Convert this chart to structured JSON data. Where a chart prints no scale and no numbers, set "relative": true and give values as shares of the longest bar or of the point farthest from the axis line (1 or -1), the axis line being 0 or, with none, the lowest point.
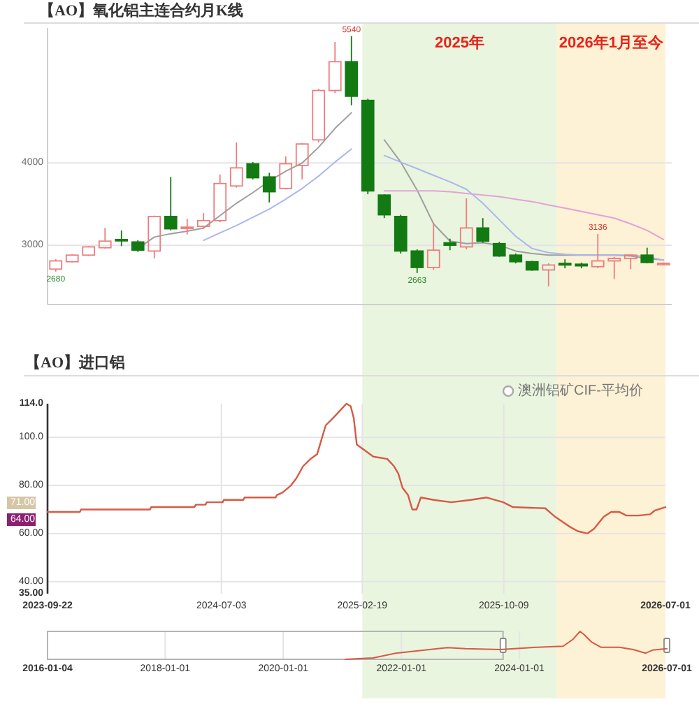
{
  "chart_data": [
    {
      "type": "candlestick",
      "title": "【AO】氧化铝主连合约月K线",
      "categories": [
        null,
        null,
        null,
        null,
        null,
        null,
        null,
        null,
        null,
        null,
        null,
        null,
        null,
        null,
        null,
        null,
        null,
        null,
        null,
        null,
        null,
        null,
        null,
        null,
        null,
        null,
        null,
        null,
        null,
        null,
        null,
        null,
        null,
        null,
        null,
        null,
        null,
        null
      ],
      "ohlc": [
        [
          2710,
          2830,
          2680,
          2810
        ],
        [
          2800,
          2890,
          2790,
          2880
        ],
        [
          2880,
          2990,
          2870,
          2980
        ],
        [
          2970,
          3210,
          2960,
          3050
        ],
        [
          3070,
          3180,
          2990,
          3060
        ],
        [
          3040,
          3060,
          2920,
          2940
        ],
        [
          2930,
          3360,
          2840,
          3350
        ],
        [
          3350,
          3830,
          3180,
          3200
        ],
        [
          3210,
          3320,
          3130,
          3220
        ],
        [
          3230,
          3390,
          3200,
          3300
        ],
        [
          3300,
          3860,
          3280,
          3750
        ],
        [
          3720,
          4250,
          3700,
          3940
        ],
        [
          3990,
          4010,
          3800,
          3820
        ],
        [
          3830,
          3880,
          3520,
          3650
        ],
        [
          3690,
          4080,
          3680,
          3990
        ],
        [
          3970,
          4240,
          3800,
          4230
        ],
        [
          4280,
          4900,
          4250,
          4880
        ],
        [
          4880,
          5470,
          4850,
          5230
        ],
        [
          5230,
          5540,
          4700,
          4810
        ],
        [
          4760,
          4780,
          3620,
          3660
        ],
        [
          3610,
          3620,
          3330,
          3370
        ],
        [
          3350,
          3370,
          2900,
          2930
        ],
        [
          2930,
          2950,
          2663,
          2730
        ],
        [
          2730,
          3270,
          2700,
          2940
        ],
        [
          3030,
          3080,
          2940,
          3000
        ],
        [
          2980,
          3570,
          2950,
          3210
        ],
        [
          3210,
          3330,
          3030,
          3050
        ],
        [
          3020,
          3040,
          2860,
          2870
        ],
        [
          2880,
          2900,
          2780,
          2800
        ],
        [
          2800,
          2810,
          2690,
          2700
        ],
        [
          2700,
          2780,
          2500,
          2760
        ],
        [
          2780,
          2830,
          2720,
          2760
        ],
        [
          2770,
          2790,
          2720,
          2750
        ],
        [
          2740,
          3136,
          2720,
          2810
        ],
        [
          2810,
          2860,
          2590,
          2840
        ],
        [
          2840,
          2890,
          2710,
          2880
        ],
        [
          2880,
          2970,
          2780,
          2790
        ],
        [
          2770,
          2790,
          2760,
          2780
        ]
      ],
      "series": [
        {
          "type": "line",
          "color": "#9e9e9e",
          "values": [
            null,
            null,
            null,
            null,
            null,
            2960,
            3100,
            3140,
            3170,
            3210,
            3360,
            3510,
            3640,
            3780,
            3900,
            4000,
            4190,
            4420,
            4610,
            null,
            4280,
            4010,
            3670,
            3260,
            3050,
            3020,
            3030,
            3000,
            2930,
            2900,
            2880,
            2880,
            2880,
            2880,
            2880,
            2870,
            2840,
            2820
          ]
        },
        {
          "type": "line",
          "color": "#a9b8ec",
          "values": [
            null,
            null,
            null,
            null,
            null,
            null,
            null,
            null,
            null,
            3060,
            3150,
            3240,
            3340,
            3440,
            3560,
            3690,
            3840,
            4010,
            4170,
            null,
            4090,
            4010,
            3930,
            3850,
            3770,
            3680,
            3510,
            3310,
            3110,
            2960,
            2910,
            2890,
            2880,
            2880,
            2880,
            2880,
            2860,
            2820
          ]
        },
        {
          "type": "line",
          "color": "#e3a3d6",
          "values": [
            null,
            null,
            null,
            null,
            null,
            null,
            null,
            null,
            null,
            null,
            null,
            null,
            null,
            null,
            null,
            null,
            null,
            null,
            null,
            null,
            3660,
            3660,
            3660,
            3660,
            3650,
            3630,
            3610,
            3590,
            3560,
            3530,
            3490,
            3450,
            3410,
            3370,
            3330,
            3260,
            3180,
            3070
          ]
        }
      ],
      "ylim": [
        2280,
        5640
      ],
      "yticks": [
        3000,
        4000
      ],
      "grid": "y",
      "tick_labels": "y",
      "annotations": [
        {
          "text": "5540",
          "y": 5540
        },
        {
          "text": "2680",
          "y": 2680
        },
        {
          "text": "2663",
          "y": 2663
        },
        {
          "text": "3136",
          "y": 3136
        }
      ]
    },
    {
      "type": "line",
      "title": "【AO】进口铝",
      "series": [
        {
          "color": "#d65a45",
          "x": [
            "2023-09-22",
            "2023-11-14",
            "2023-11-16",
            "2024-03-08",
            "2024-03-10",
            "2024-05-20",
            "2024-05-22",
            "2024-06-07",
            "2024-06-09",
            "2024-07-05",
            "2024-07-07",
            "2024-08-08",
            "2024-08-10",
            "2024-09-30",
            "2024-10-02",
            "2024-10-11",
            "2024-10-25",
            "2024-11-03",
            "2024-11-14",
            "2024-11-26",
            "2024-12-07",
            "2024-12-14",
            "2024-12-21",
            "2025-01-02",
            "2025-01-13",
            "2025-01-24",
            "2025-01-31",
            "2025-02-05",
            "2025-02-10",
            "2025-02-21",
            "2025-03-09",
            "2025-04-01",
            "2025-04-12",
            "2025-04-19",
            "2025-04-26",
            "2025-05-05",
            "2025-05-12",
            "2025-05-19",
            "2025-05-26",
            "2025-06-16",
            "2025-07-15",
            "2025-08-16",
            "2025-09-11",
            "2025-10-08",
            "2025-10-24",
            "2025-12-16",
            "2026-01-01",
            "2026-01-24",
            "2026-02-07",
            "2026-02-23",
            "2026-03-06",
            "2026-03-22",
            "2026-04-03",
            "2026-04-16",
            "2026-04-28",
            "2026-05-18",
            "2026-06-06",
            "2026-06-13",
            "2026-07-01"
          ],
          "values": [
            69,
            69,
            70,
            70,
            71,
            71,
            72,
            72,
            73,
            73,
            74,
            74,
            75,
            75,
            76,
            77,
            80,
            83,
            88,
            91,
            93,
            99,
            105,
            108,
            111,
            114,
            113,
            108,
            97,
            95,
            92,
            91,
            88,
            85,
            79,
            76,
            70,
            70,
            75,
            74,
            73,
            74,
            75,
            73,
            71,
            70.5,
            67,
            63,
            61,
            60,
            62,
            67,
            69,
            69,
            67.5,
            67.5,
            68,
            69.5,
            71
          ]
        },
        {
          "name": "澳洲铝矿CIF-平均价",
          "color": "#aaaaaa"
        }
      ],
      "xlim": [
        "2023-09-22",
        "2026-07-01"
      ],
      "xticks": [
        "2023-09-22",
        "2024-07-03",
        "2025-02-19",
        "2025-10-09",
        "2026-07-01"
      ],
      "ylim": [
        35,
        114
      ],
      "yticks": [
        {
          "value": 35,
          "label": "35.00"
        },
        {
          "value": 40,
          "label": "40.00"
        },
        {
          "value": 60,
          "label": "60.00"
        },
        {
          "value": 80,
          "label": "80.00"
        },
        {
          "value": 100,
          "label": "100.0"
        },
        {
          "value": 114,
          "label": "114.0"
        }
      ],
      "grid": true,
      "legend": "top right",
      "bands": [
        {
          "axis": "x",
          "from": "2025-02-19",
          "to": "2026-01-04",
          "label": "2025年",
          "color": "#eaf5df"
        },
        {
          "axis": "x",
          "from": "2026-01-04",
          "to": "2026-07-01",
          "label": "2026年1月至今",
          "color": "#fdf1d6"
        }
      ],
      "annotations": [
        "71.00",
        "64.00"
      ]
    },
    {
      "type": "line",
      "relative": true,
      "x": [
        "2021-01-19",
        "2021-07-11",
        "2021-11-27",
        "2022-10-12",
        "2023-02-02",
        "2023-09-05",
        "2024-03-13",
        "2024-09-28",
        "2024-11-28",
        "2025-01-10",
        "2025-02-05",
        "2025-03-20",
        "2025-05-20",
        "2025-09-10",
        "2025-12-05",
        "2026-02-20",
        "2026-04-04",
        "2026-07-01"
      ],
      "series": [
        {
          "color": "#d65a45",
          "values": [
            0,
            0.05,
            0.22,
            0.42,
            0.38,
            0.35,
            0.42,
            0.47,
            0.72,
            1,
            0.88,
            0.63,
            0.43,
            0.43,
            0.35,
            0.22,
            0.33,
            0.38
          ]
        }
      ],
      "xlim": [
        "2016-01-04",
        "2026-07-01"
      ],
      "xticks": [
        "2016-01-04",
        "2018-01-01",
        "2020-01-01",
        "2022-01-01",
        "2024-01-01",
        "2026-07-01"
      ],
      "grid": "x"
    }
  ]
}
